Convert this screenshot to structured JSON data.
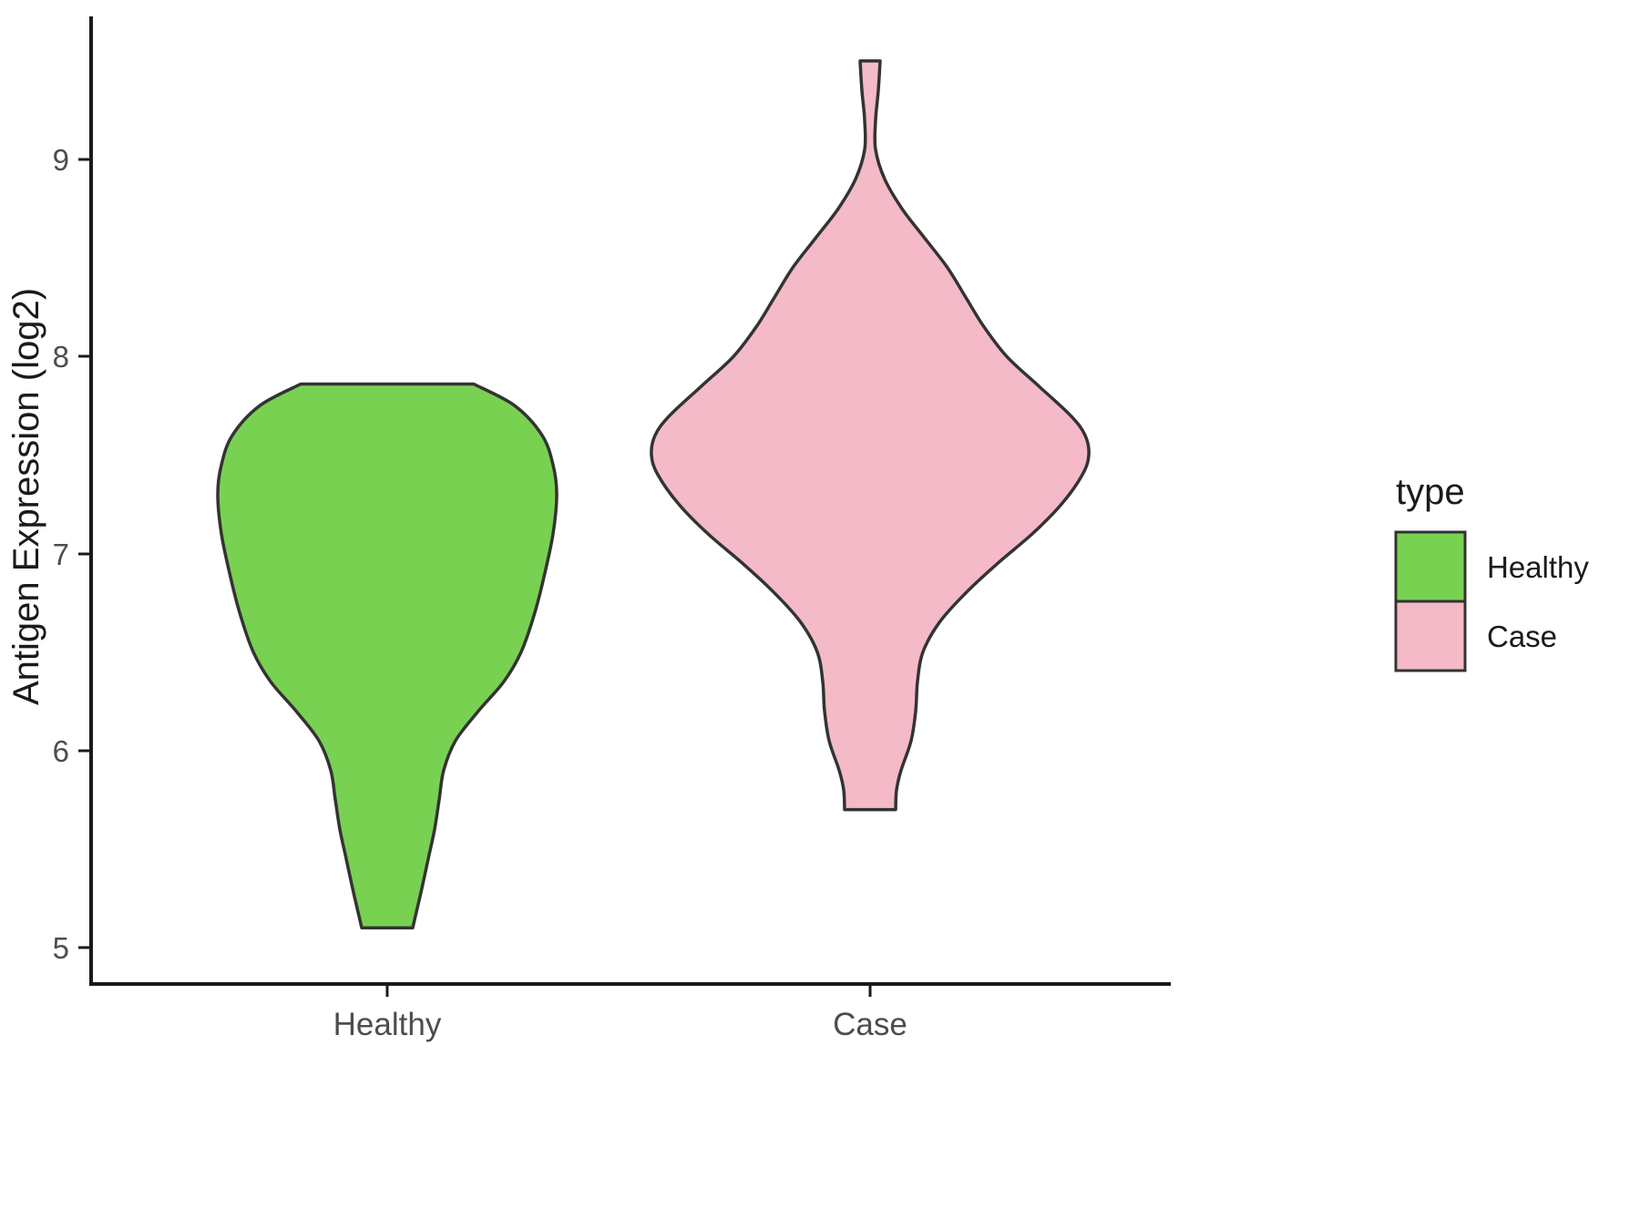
{
  "chart_data": {
    "type": "violin",
    "title": "",
    "ylabel": "Antigen Expression (log2)",
    "xlabel": "",
    "ylim": [
      5,
      9.5
    ],
    "yticks": [
      9,
      8,
      7,
      6,
      5
    ],
    "grid": "off",
    "categories": [
      "Healthy",
      "Case"
    ],
    "legend": {
      "title": "type",
      "position": "right",
      "entries": [
        {
          "label": "Healthy",
          "color": "#79d152"
        },
        {
          "label": "Case",
          "color": "#f4bac8"
        }
      ]
    },
    "outline_color": "#333333",
    "series": [
      {
        "name": "Healthy",
        "color": "#79d152",
        "value_range": [
          5.1,
          7.86
        ],
        "widest_at": 7.3,
        "profile": [
          [
            7.86,
            95
          ],
          [
            7.75,
            140
          ],
          [
            7.6,
            170
          ],
          [
            7.45,
            182
          ],
          [
            7.3,
            186
          ],
          [
            7.1,
            182
          ],
          [
            6.9,
            173
          ],
          [
            6.7,
            162
          ],
          [
            6.5,
            147
          ],
          [
            6.35,
            128
          ],
          [
            6.2,
            100
          ],
          [
            6.05,
            75
          ],
          [
            5.9,
            62
          ],
          [
            5.75,
            57
          ],
          [
            5.6,
            52
          ],
          [
            5.45,
            45
          ],
          [
            5.3,
            38
          ],
          [
            5.2,
            33
          ],
          [
            5.1,
            28
          ]
        ]
      },
      {
        "name": "Case",
        "color": "#f4bac8",
        "value_range": [
          5.7,
          9.5
        ],
        "widest_at": 7.5,
        "profile": [
          [
            9.5,
            11
          ],
          [
            9.35,
            9
          ],
          [
            9.2,
            6
          ],
          [
            9.05,
            6
          ],
          [
            8.9,
            16
          ],
          [
            8.75,
            35
          ],
          [
            8.6,
            60
          ],
          [
            8.45,
            85
          ],
          [
            8.3,
            105
          ],
          [
            8.15,
            125
          ],
          [
            8.0,
            150
          ],
          [
            7.85,
            185
          ],
          [
            7.7,
            220
          ],
          [
            7.6,
            236
          ],
          [
            7.5,
            240
          ],
          [
            7.4,
            233
          ],
          [
            7.25,
            210
          ],
          [
            7.1,
            178
          ],
          [
            6.95,
            140
          ],
          [
            6.8,
            105
          ],
          [
            6.65,
            76
          ],
          [
            6.5,
            58
          ],
          [
            6.35,
            52
          ],
          [
            6.2,
            50
          ],
          [
            6.05,
            45
          ],
          [
            5.9,
            34
          ],
          [
            5.8,
            29
          ],
          [
            5.7,
            28
          ]
        ]
      }
    ]
  }
}
